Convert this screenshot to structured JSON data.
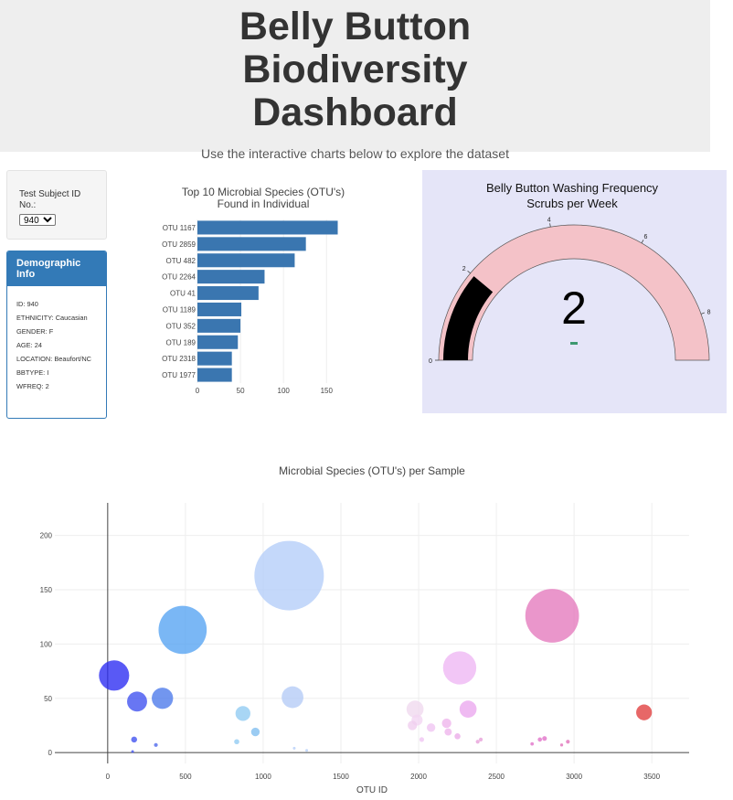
{
  "header": {
    "title": "Belly Button Biodiversity Dashboard",
    "subtitle": "Use the interactive charts below to explore the dataset"
  },
  "selector": {
    "label": "Test Subject ID No.:",
    "selected": "940"
  },
  "demographic": {
    "heading": "Demographic Info",
    "items": [
      "ID: 940",
      "ETHNICITY: Caucasian",
      "GENDER: F",
      "AGE: 24",
      "LOCATION: Beaufort/NC",
      "BBTYPE: I",
      "WFREQ: 2"
    ]
  },
  "colors": {
    "panel_blue": "#337ab7",
    "bar_blue": "#3a76b0",
    "gauge_bg": "#e5e5f8",
    "gauge_arc": "#f4c2c8",
    "needle": "#000000"
  },
  "chart_data": [
    {
      "type": "bar",
      "orientation": "horizontal",
      "title": "Top 10 Microbial Species (OTU's) Found in Individual",
      "categories": [
        "OTU 1167",
        "OTU 2859",
        "OTU 482",
        "OTU 2264",
        "OTU 41",
        "OTU 1189",
        "OTU 352",
        "OTU 189",
        "OTU 2318",
        "OTU 1977"
      ],
      "values": [
        163,
        126,
        113,
        78,
        71,
        51,
        50,
        47,
        40,
        40
      ],
      "xticks": [
        0,
        50,
        100,
        150
      ],
      "xlim": [
        0,
        172
      ],
      "grid": true
    },
    {
      "type": "gauge",
      "title": "Belly Button Washing Frequency",
      "subtitle": "Scrubs per Week",
      "value": 2,
      "value_label": "2",
      "range": [
        0,
        9
      ],
      "ticks": [
        0,
        2,
        4,
        6,
        8
      ]
    },
    {
      "type": "scatter",
      "mode": "bubble",
      "title": "Microbial Species (OTU's) per Sample",
      "xlabel": "OTU ID",
      "xticks": [
        0,
        500,
        1000,
        1500,
        2000,
        2500,
        3000,
        3500
      ],
      "yticks": [
        0,
        50,
        100,
        150,
        200
      ],
      "xlim": [
        -340,
        3740
      ],
      "ylim": [
        -10,
        230
      ],
      "grid": true,
      "points": [
        {
          "x": 41,
          "y": 71,
          "s": 71,
          "color": "#2a2af2"
        },
        {
          "x": 189,
          "y": 47,
          "s": 47,
          "color": "#3d50ef"
        },
        {
          "x": 352,
          "y": 50,
          "s": 50,
          "color": "#4a78ea"
        },
        {
          "x": 482,
          "y": 113,
          "s": 113,
          "color": "#55a3f2"
        },
        {
          "x": 870,
          "y": 36,
          "s": 35,
          "color": "#8fcaf2"
        },
        {
          "x": 1167,
          "y": 163,
          "s": 163,
          "color": "#b4cdf8"
        },
        {
          "x": 1189,
          "y": 51,
          "s": 51,
          "color": "#b3cbf6"
        },
        {
          "x": 1977,
          "y": 40,
          "s": 40,
          "color": "#f0d8ee"
        },
        {
          "x": 2264,
          "y": 78,
          "s": 78,
          "color": "#eeb6f4"
        },
        {
          "x": 2318,
          "y": 40,
          "s": 40,
          "color": "#eaa7ee"
        },
        {
          "x": 2859,
          "y": 126,
          "s": 126,
          "color": "#e478bd"
        },
        {
          "x": 3450,
          "y": 37,
          "s": 37,
          "color": "#e03c3c"
        },
        {
          "x": 170,
          "y": 12,
          "s": 14,
          "color": "#3d50ef"
        },
        {
          "x": 310,
          "y": 7,
          "s": 9,
          "color": "#4a65ec"
        },
        {
          "x": 830,
          "y": 10,
          "s": 12,
          "color": "#8fcaf2"
        },
        {
          "x": 950,
          "y": 19,
          "s": 20,
          "color": "#7fbef0"
        },
        {
          "x": 1990,
          "y": 30,
          "s": 26,
          "color": "#f2d5f2"
        },
        {
          "x": 1960,
          "y": 25,
          "s": 22,
          "color": "#f0cdee"
        },
        {
          "x": 2080,
          "y": 23,
          "s": 20,
          "color": "#f0c4f2"
        },
        {
          "x": 2180,
          "y": 27,
          "s": 22,
          "color": "#eeb4ec"
        },
        {
          "x": 2190,
          "y": 19,
          "s": 17,
          "color": "#eeb4ec"
        },
        {
          "x": 2250,
          "y": 15,
          "s": 14,
          "color": "#ebaae8"
        },
        {
          "x": 2020,
          "y": 12,
          "s": 11,
          "color": "#f0c4f2"
        },
        {
          "x": 2400,
          "y": 12,
          "s": 9,
          "color": "#e79ed8"
        },
        {
          "x": 2380,
          "y": 10,
          "s": 9,
          "color": "#e79ed8"
        },
        {
          "x": 2780,
          "y": 12,
          "s": 10,
          "color": "#e070c8"
        },
        {
          "x": 2810,
          "y": 13,
          "s": 11,
          "color": "#e070c8"
        },
        {
          "x": 2730,
          "y": 8,
          "s": 8,
          "color": "#e070c8"
        },
        {
          "x": 2960,
          "y": 10,
          "s": 9,
          "color": "#e070b8"
        },
        {
          "x": 2920,
          "y": 7,
          "s": 7,
          "color": "#e070b8"
        },
        {
          "x": 160,
          "y": 1,
          "s": 4,
          "color": "#3d50ef"
        },
        {
          "x": 1200,
          "y": 4,
          "s": 5,
          "color": "#b4cdf8"
        },
        {
          "x": 1280,
          "y": 2,
          "s": 4,
          "color": "#b4cdf8"
        }
      ]
    }
  ]
}
